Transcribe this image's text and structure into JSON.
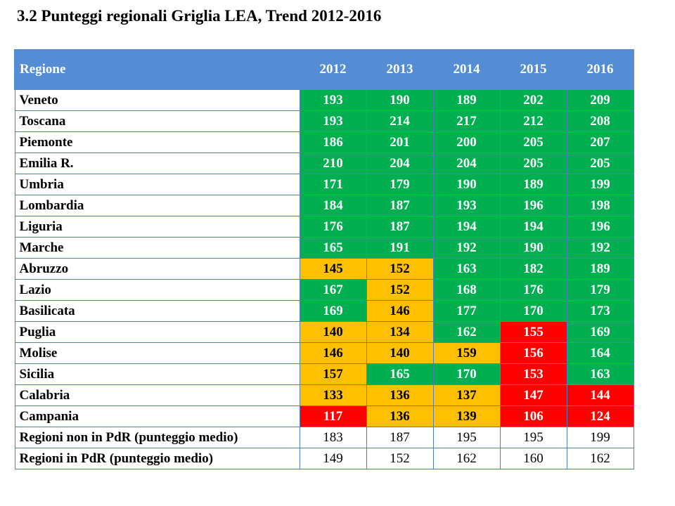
{
  "title": "3.2 Punteggi regionali Griglia LEA, Trend 2012-2016",
  "colors": {
    "header": "#548dd4",
    "green": "#00b050",
    "yellow": "#ffc000",
    "red": "#ff0000",
    "border": "#4f81bd"
  },
  "chart_data": {
    "type": "table",
    "title": "3.2 Punteggi regionali Griglia LEA, Trend 2012-2016",
    "header_label": "Regione",
    "columns": [
      "2012",
      "2013",
      "2014",
      "2015",
      "2016"
    ],
    "rows": [
      {
        "name": "Veneto",
        "values": [
          193,
          190,
          189,
          202,
          209
        ],
        "status": [
          "g",
          "g",
          "g",
          "g",
          "g"
        ]
      },
      {
        "name": "Toscana",
        "values": [
          193,
          214,
          217,
          212,
          208
        ],
        "status": [
          "g",
          "g",
          "g",
          "g",
          "g"
        ]
      },
      {
        "name": "Piemonte",
        "values": [
          186,
          201,
          200,
          205,
          207
        ],
        "status": [
          "g",
          "g",
          "g",
          "g",
          "g"
        ]
      },
      {
        "name": "Emilia R.",
        "values": [
          210,
          204,
          204,
          205,
          205
        ],
        "status": [
          "g",
          "g",
          "g",
          "g",
          "g"
        ]
      },
      {
        "name": "Umbria",
        "values": [
          171,
          179,
          190,
          189,
          199
        ],
        "status": [
          "g",
          "g",
          "g",
          "g",
          "g"
        ]
      },
      {
        "name": "Lombardia",
        "values": [
          184,
          187,
          193,
          196,
          198
        ],
        "status": [
          "g",
          "g",
          "g",
          "g",
          "g"
        ]
      },
      {
        "name": "Liguria",
        "values": [
          176,
          187,
          194,
          194,
          196
        ],
        "status": [
          "g",
          "g",
          "g",
          "g",
          "g"
        ]
      },
      {
        "name": "Marche",
        "values": [
          165,
          191,
          192,
          190,
          192
        ],
        "status": [
          "g",
          "g",
          "g",
          "g",
          "g"
        ]
      },
      {
        "name": "Abruzzo",
        "values": [
          145,
          152,
          163,
          182,
          189
        ],
        "status": [
          "y",
          "y",
          "g",
          "g",
          "g"
        ]
      },
      {
        "name": "Lazio",
        "values": [
          167,
          152,
          168,
          176,
          179
        ],
        "status": [
          "g",
          "y",
          "g",
          "g",
          "g"
        ]
      },
      {
        "name": "Basilicata",
        "values": [
          169,
          146,
          177,
          170,
          173
        ],
        "status": [
          "g",
          "y",
          "g",
          "g",
          "g"
        ]
      },
      {
        "name": "Puglia",
        "values": [
          140,
          134,
          162,
          155,
          169
        ],
        "status": [
          "y",
          "y",
          "g",
          "r",
          "g"
        ]
      },
      {
        "name": "Molise",
        "values": [
          146,
          140,
          159,
          156,
          164
        ],
        "status": [
          "y",
          "y",
          "y",
          "r",
          "g"
        ]
      },
      {
        "name": "Sicilia",
        "values": [
          157,
          165,
          170,
          153,
          163
        ],
        "status": [
          "y",
          "g",
          "g",
          "r",
          "g"
        ]
      },
      {
        "name": "Calabria",
        "values": [
          133,
          136,
          137,
          147,
          144
        ],
        "status": [
          "y",
          "y",
          "y",
          "r",
          "r"
        ]
      },
      {
        "name": "Campania",
        "values": [
          117,
          136,
          139,
          106,
          124
        ],
        "status": [
          "r",
          "y",
          "y",
          "r",
          "r"
        ]
      },
      {
        "name": "Regioni non in PdR (punteggio medio)",
        "values": [
          183,
          187,
          195,
          195,
          199
        ],
        "status": [
          "w",
          "w",
          "w",
          "w",
          "w"
        ]
      },
      {
        "name": "Regioni in PdR (punteggio medio)",
        "values": [
          149,
          152,
          162,
          160,
          162
        ],
        "status": [
          "w",
          "w",
          "w",
          "w",
          "w"
        ]
      }
    ]
  }
}
